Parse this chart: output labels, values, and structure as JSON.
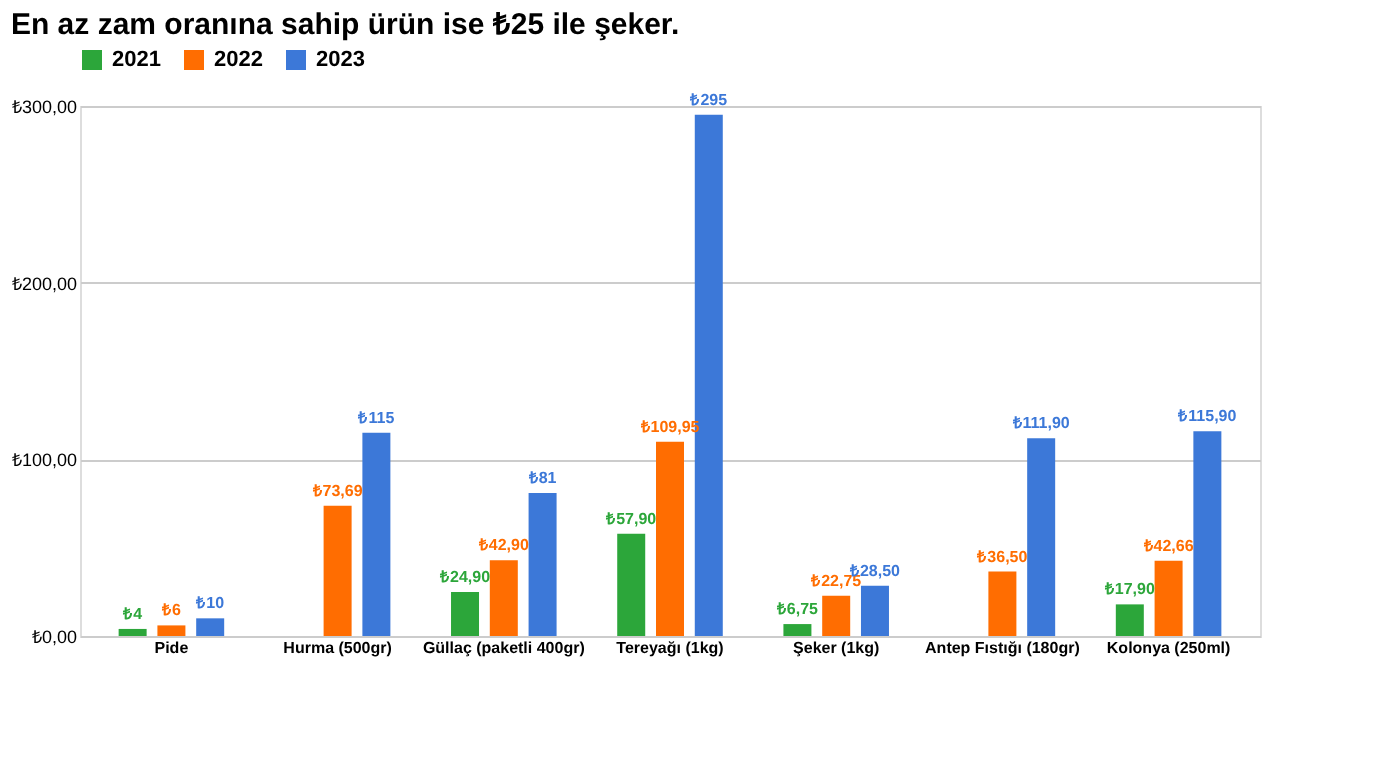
{
  "chart_data": {
    "type": "bar",
    "title": "En az zam oranına sahip ürün ise ₺25 ile şeker.",
    "categories": [
      "Pide",
      "Hurma (500gr)",
      "Güllaç (paketli 400gr)",
      "Tereyağı (1kg)",
      "Şeker (1kg)",
      "Antep Fıstığı (180gr)",
      "Kolonya (250ml)"
    ],
    "series": [
      {
        "name": "2021",
        "color": "#2ca63a",
        "values": [
          4,
          null,
          24.9,
          57.9,
          6.75,
          null,
          17.9
        ],
        "value_labels": [
          "₺4",
          null,
          "₺24,90",
          "₺57,90",
          "₺6,75",
          null,
          "₺17,90"
        ]
      },
      {
        "name": "2022",
        "color": "#ff6d01",
        "values": [
          6,
          73.69,
          42.9,
          109.95,
          22.75,
          36.5,
          42.66
        ],
        "value_labels": [
          "₺6",
          "₺73,69",
          "₺42,90",
          "₺109,95",
          "₺22,75",
          "₺36,50",
          "₺42,66"
        ]
      },
      {
        "name": "2023",
        "color": "#3c78d8",
        "values": [
          10,
          115,
          81,
          295,
          28.5,
          111.9,
          115.9
        ],
        "value_labels": [
          "₺10",
          "₺115",
          "₺81",
          "₺295",
          "₺28,50",
          "₺111,90",
          "₺115,90"
        ]
      }
    ],
    "ylim": [
      0,
      300
    ],
    "yticks": [
      {
        "value": 0,
        "label": "₺0,00"
      },
      {
        "value": 100,
        "label": "₺100,00"
      },
      {
        "value": 200,
        "label": "₺200,00"
      },
      {
        "value": 300,
        "label": "₺300,00"
      }
    ],
    "grid": "y",
    "legend": "top"
  }
}
